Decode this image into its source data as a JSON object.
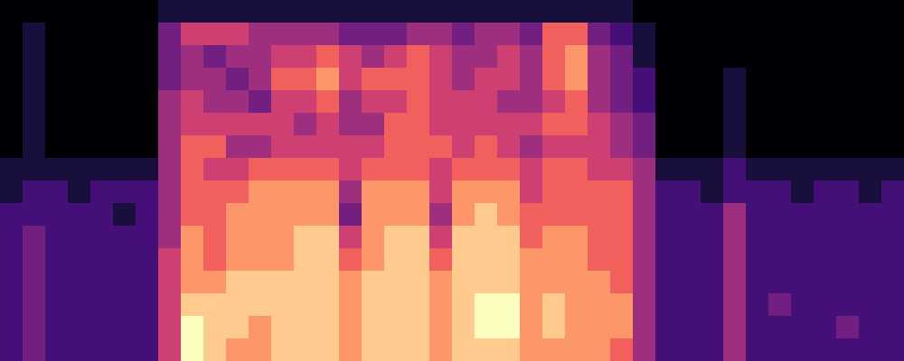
{
  "chart_data": {
    "type": "heatmap",
    "color": "magma",
    "tick_labels": false,
    "zlim": [
      0,
      9
    ],
    "cells": [
      [
        0,
        0,
        0,
        0,
        0,
        0,
        0,
        1,
        1,
        1,
        1,
        1,
        1,
        1,
        1,
        1,
        1,
        1,
        1,
        1,
        1,
        1,
        1,
        1,
        1,
        1,
        1,
        1,
        0,
        0,
        0,
        0,
        0,
        0,
        0,
        0,
        0,
        0,
        0,
        0
      ],
      [
        0,
        1,
        0,
        0,
        0,
        0,
        0,
        3,
        5,
        5,
        5,
        4,
        4,
        4,
        4,
        3,
        3,
        3,
        4,
        4,
        3,
        4,
        4,
        3,
        6,
        6,
        3,
        2,
        1,
        0,
        0,
        0,
        0,
        0,
        0,
        0,
        0,
        0,
        0,
        0
      ],
      [
        0,
        1,
        0,
        0,
        0,
        0,
        0,
        3,
        4,
        3,
        4,
        4,
        5,
        5,
        6,
        5,
        4,
        5,
        6,
        5,
        4,
        4,
        5,
        4,
        6,
        7,
        4,
        3,
        1,
        0,
        0,
        0,
        0,
        0,
        0,
        0,
        0,
        0,
        0,
        0
      ],
      [
        0,
        1,
        0,
        0,
        0,
        0,
        0,
        3,
        4,
        4,
        3,
        4,
        6,
        6,
        7,
        5,
        6,
        6,
        6,
        5,
        4,
        5,
        5,
        4,
        6,
        7,
        4,
        3,
        2,
        0,
        0,
        0,
        1,
        0,
        0,
        0,
        0,
        0,
        0,
        0
      ],
      [
        0,
        1,
        0,
        0,
        0,
        0,
        0,
        4,
        5,
        4,
        4,
        3,
        5,
        5,
        6,
        4,
        5,
        5,
        6,
        5,
        5,
        5,
        4,
        4,
        5,
        6,
        4,
        3,
        2,
        0,
        0,
        0,
        1,
        0,
        0,
        0,
        0,
        0,
        0,
        0
      ],
      [
        0,
        1,
        0,
        0,
        0,
        0,
        0,
        4,
        5,
        5,
        5,
        5,
        5,
        4,
        5,
        4,
        4,
        6,
        6,
        5,
        5,
        5,
        5,
        5,
        6,
        6,
        5,
        4,
        3,
        0,
        0,
        0,
        1,
        0,
        0,
        0,
        0,
        0,
        0,
        0
      ],
      [
        0,
        1,
        0,
        0,
        0,
        0,
        0,
        4,
        6,
        6,
        4,
        4,
        5,
        5,
        5,
        5,
        5,
        6,
        6,
        6,
        5,
        6,
        5,
        4,
        5,
        5,
        5,
        4,
        3,
        0,
        0,
        0,
        1,
        0,
        0,
        0,
        0,
        0,
        0,
        0
      ],
      [
        1,
        1,
        1,
        1,
        1,
        1,
        1,
        4,
        6,
        5,
        5,
        6,
        6,
        6,
        6,
        5,
        6,
        6,
        6,
        5,
        6,
        6,
        6,
        5,
        6,
        6,
        5,
        5,
        4,
        1,
        1,
        1,
        2,
        1,
        1,
        1,
        1,
        1,
        1,
        1
      ],
      [
        1,
        2,
        2,
        1,
        2,
        2,
        2,
        4,
        6,
        6,
        6,
        7,
        7,
        7,
        7,
        4,
        7,
        7,
        7,
        5,
        7,
        7,
        7,
        5,
        6,
        6,
        6,
        6,
        4,
        2,
        2,
        1,
        2,
        2,
        2,
        1,
        2,
        2,
        1,
        2
      ],
      [
        2,
        2,
        2,
        2,
        2,
        1,
        2,
        4,
        6,
        6,
        7,
        7,
        7,
        7,
        7,
        3,
        7,
        7,
        7,
        4,
        7,
        8,
        7,
        6,
        6,
        6,
        6,
        6,
        4,
        2,
        2,
        2,
        4,
        2,
        2,
        2,
        2,
        2,
        2,
        2
      ],
      [
        2,
        3,
        2,
        2,
        2,
        2,
        2,
        4,
        7,
        6,
        7,
        7,
        7,
        8,
        8,
        5,
        7,
        8,
        8,
        5,
        8,
        8,
        8,
        6,
        7,
        7,
        6,
        6,
        4,
        2,
        2,
        2,
        4,
        2,
        2,
        2,
        2,
        2,
        2,
        2
      ],
      [
        2,
        3,
        2,
        2,
        2,
        2,
        2,
        5,
        7,
        6,
        7,
        7,
        7,
        8,
        8,
        6,
        7,
        8,
        8,
        6,
        8,
        8,
        8,
        7,
        7,
        7,
        6,
        6,
        4,
        2,
        2,
        2,
        4,
        2,
        2,
        2,
        2,
        2,
        2,
        2
      ],
      [
        2,
        3,
        2,
        2,
        2,
        2,
        2,
        5,
        7,
        7,
        8,
        8,
        8,
        8,
        8,
        7,
        8,
        8,
        8,
        7,
        8,
        8,
        8,
        7,
        7,
        7,
        7,
        6,
        4,
        2,
        2,
        2,
        4,
        2,
        2,
        2,
        2,
        2,
        2,
        2
      ],
      [
        2,
        3,
        2,
        2,
        2,
        2,
        2,
        5,
        8,
        8,
        8,
        8,
        8,
        8,
        8,
        7,
        8,
        8,
        8,
        7,
        8,
        9,
        9,
        7,
        8,
        7,
        7,
        7,
        4,
        2,
        2,
        2,
        4,
        2,
        3,
        2,
        2,
        2,
        2,
        2
      ],
      [
        2,
        3,
        2,
        2,
        2,
        2,
        2,
        5,
        9,
        8,
        8,
        7,
        8,
        8,
        8,
        7,
        8,
        8,
        8,
        7,
        8,
        9,
        9,
        7,
        8,
        7,
        7,
        7,
        4,
        2,
        2,
        2,
        4,
        2,
        2,
        2,
        2,
        3,
        2,
        2
      ],
      [
        2,
        3,
        2,
        2,
        2,
        2,
        2,
        5,
        9,
        8,
        7,
        7,
        8,
        8,
        8,
        7,
        8,
        8,
        8,
        7,
        8,
        8,
        8,
        7,
        7,
        7,
        7,
        6,
        4,
        2,
        2,
        2,
        4,
        2,
        2,
        2,
        2,
        2,
        2,
        2
      ]
    ]
  }
}
